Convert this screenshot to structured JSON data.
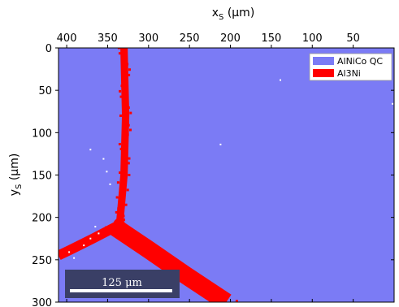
{
  "chart_data": {
    "type": "map",
    "x_axis": {
      "label_main": "x",
      "label_sub": "S",
      "label_unit": "(μm)",
      "position": "top",
      "reversed": true,
      "lim": [
        410,
        0
      ],
      "ticks": [
        400,
        350,
        300,
        250,
        200,
        150,
        100,
        50
      ]
    },
    "y_axis": {
      "label_main": "y",
      "label_sub": "S",
      "label_unit": "(μm)",
      "reversed": true,
      "lim": [
        0,
        300
      ],
      "ticks": [
        0,
        50,
        100,
        150,
        200,
        250,
        300
      ]
    },
    "background_phase": {
      "name": "AlNiCo QC",
      "color": "#7b7bf5"
    },
    "phases": [
      {
        "name": "AlNiCo QC",
        "color": "#7b7bf5"
      },
      {
        "name": "Al3Ni",
        "color": "#ff0000"
      }
    ],
    "al3ni_regions": [
      {
        "segment": "vertical-branch",
        "points": [
          [
            330,
            0
          ],
          [
            328,
            80
          ],
          [
            330,
            150
          ],
          [
            335,
            205
          ]
        ],
        "width_um": 9
      },
      {
        "segment": "left-branch",
        "points": [
          [
            338,
            210
          ],
          [
            368,
            225
          ],
          [
            395,
            238
          ],
          [
            410,
            245
          ]
        ],
        "width_um": 12
      },
      {
        "segment": "diagonal-branch",
        "points": [
          [
            340,
            212
          ],
          [
            300,
            238
          ],
          [
            255,
            268
          ],
          [
            205,
            300
          ]
        ],
        "width_um": 22
      }
    ],
    "scale_bar": {
      "label": "125 μm",
      "length_um": 125
    },
    "legend": {
      "placement": "top-right"
    },
    "grid": false
  }
}
